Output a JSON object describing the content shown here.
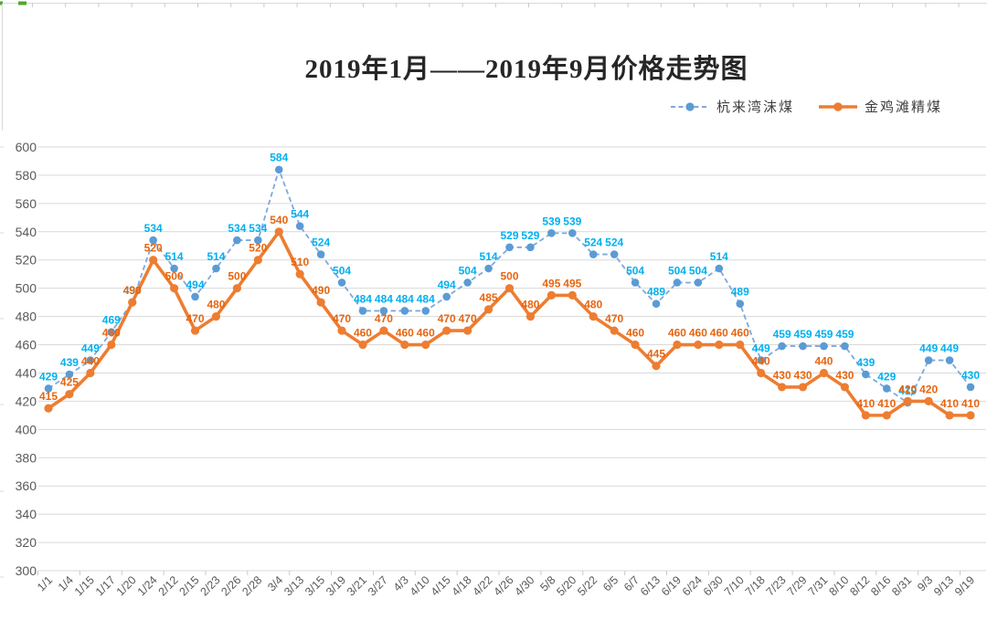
{
  "spreadsheet_artifacts": {
    "description": "thin slivers of spreadsheet cell gridlines visible along the top and left edges of the screenshot",
    "accent_green": "#4EA72E",
    "grid_gray": "#D9D9D9",
    "tick_gray": "#C9C9C9"
  },
  "chart_data": {
    "type": "line",
    "title": "2019年1月——2019年9月价格走势图",
    "categories": [
      "1/1",
      "1/4",
      "1/15",
      "1/17",
      "1/20",
      "1/24",
      "2/12",
      "2/15",
      "2/23",
      "2/26",
      "2/28",
      "3/4",
      "3/13",
      "3/15",
      "3/19",
      "3/21",
      "3/27",
      "4/3",
      "4/10",
      "4/15",
      "4/18",
      "4/22",
      "4/26",
      "4/30",
      "5/8",
      "5/20",
      "5/22",
      "6/5",
      "6/7",
      "6/13",
      "6/19",
      "6/24",
      "6/30",
      "7/10",
      "7/18",
      "7/23",
      "7/29",
      "7/31",
      "8/10",
      "8/12",
      "8/16",
      "8/31",
      "9/3",
      "9/13",
      "9/19"
    ],
    "series": [
      {
        "name": "杭来湾沫煤",
        "line_style": "dashed",
        "line_color": "#7FA8DC",
        "marker_color": "#5B9BD5",
        "label_color": "#00B0F0",
        "values": [
          429,
          439,
          449,
          469,
          490,
          534,
          514,
          494,
          514,
          534,
          534,
          584,
          544,
          524,
          504,
          484,
          484,
          484,
          484,
          494,
          504,
          514,
          529,
          529,
          539,
          539,
          524,
          524,
          504,
          489,
          504,
          504,
          514,
          489,
          449,
          459,
          459,
          459,
          459,
          439,
          429,
          419,
          449,
          449,
          430
        ]
      },
      {
        "name": "金鸡滩精煤",
        "line_style": "solid",
        "line_color": "#ED7D31",
        "marker_color": "#ED7D31",
        "label_color": "#E8650F",
        "values": [
          415,
          425,
          440,
          460,
          490,
          520,
          500,
          470,
          480,
          500,
          520,
          540,
          510,
          490,
          470,
          460,
          470,
          460,
          460,
          470,
          470,
          485,
          500,
          480,
          495,
          495,
          480,
          470,
          460,
          445,
          460,
          460,
          460,
          460,
          440,
          430,
          430,
          440,
          430,
          410,
          410,
          420,
          420,
          410,
          410
        ]
      }
    ],
    "ylim": [
      300,
      600
    ],
    "ytick_step": 20,
    "ytick_labels": [
      "300",
      "320",
      "340",
      "360",
      "380",
      "400",
      "420",
      "440",
      "460",
      "480",
      "500",
      "520",
      "540",
      "560",
      "580",
      "600"
    ],
    "grid": true,
    "legend_position": "top-right",
    "axis_text_color": "#595959",
    "gridline_color": "#D9D9D9",
    "data_labels_shown": true
  }
}
